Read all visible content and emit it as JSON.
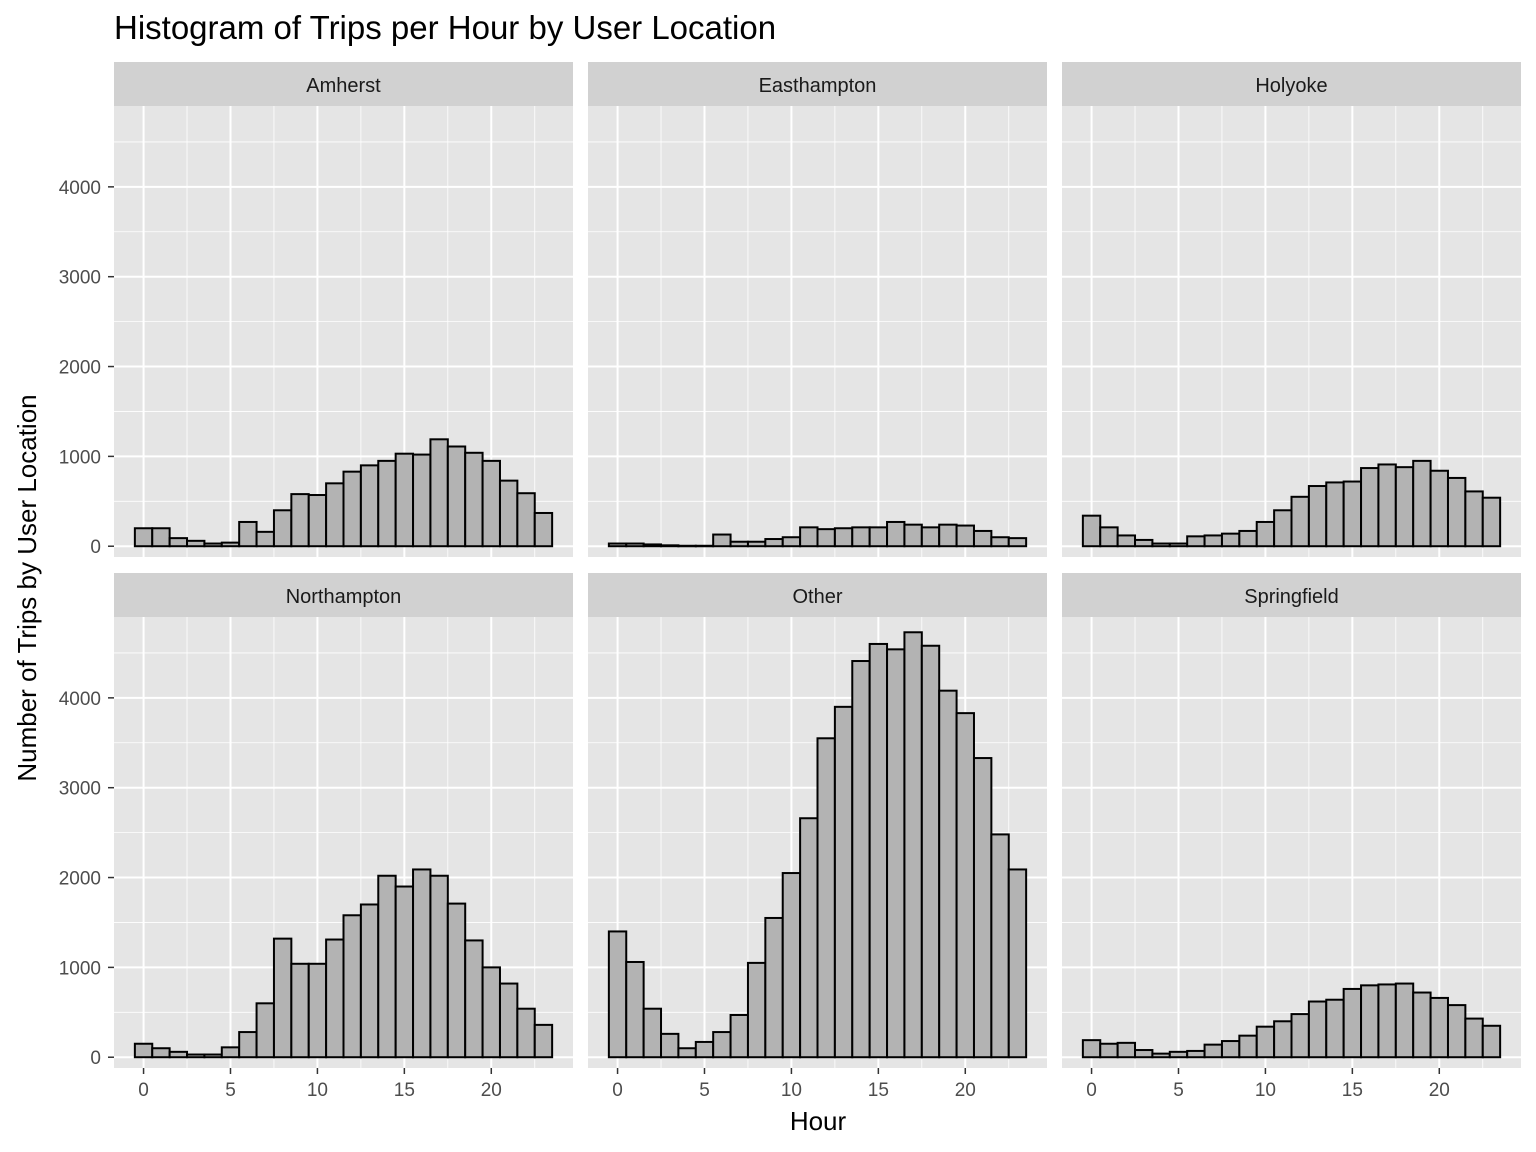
{
  "title": "Histogram of Trips per Hour by User Location",
  "xlabel": "Hour",
  "ylabel": "Number of Trips by User Location",
  "colors": {
    "panel_bg": "#e5e5e5",
    "strip_bg": "#d1d1d1",
    "grid_major": "#ffffff",
    "bar_fill": "#b3b3b3",
    "bar_stroke": "#000000",
    "tick_text": "#4d4d4d"
  },
  "chart_data": {
    "type": "bar",
    "subtype": "faceted-histogram",
    "facet_layout": {
      "rows": 2,
      "cols": 3
    },
    "x": [
      0,
      1,
      2,
      3,
      4,
      5,
      6,
      7,
      8,
      9,
      10,
      11,
      12,
      13,
      14,
      15,
      16,
      17,
      18,
      19,
      20,
      21,
      22,
      23
    ],
    "xlim": [
      -1.7,
      24.7
    ],
    "ylim": [
      -120,
      4900
    ],
    "x_ticks": [
      0,
      5,
      10,
      15,
      20
    ],
    "y_ticks": [
      0,
      1000,
      2000,
      3000,
      4000
    ],
    "grid": true,
    "shared_axes": true,
    "series": [
      {
        "name": "Amherst",
        "values": [
          200,
          200,
          90,
          60,
          30,
          40,
          270,
          160,
          400,
          580,
          570,
          700,
          830,
          900,
          950,
          1030,
          1020,
          1190,
          1110,
          1040,
          950,
          730,
          590,
          370
        ]
      },
      {
        "name": "Easthampton",
        "values": [
          30,
          30,
          20,
          10,
          5,
          5,
          130,
          50,
          50,
          80,
          100,
          210,
          190,
          200,
          210,
          210,
          270,
          240,
          210,
          240,
          230,
          170,
          100,
          90
        ]
      },
      {
        "name": "Holyoke",
        "values": [
          340,
          210,
          120,
          70,
          30,
          30,
          110,
          120,
          140,
          170,
          270,
          400,
          550,
          670,
          710,
          720,
          870,
          910,
          880,
          950,
          840,
          760,
          610,
          540
        ]
      },
      {
        "name": "Northampton",
        "values": [
          150,
          100,
          60,
          30,
          30,
          110,
          280,
          600,
          1320,
          1040,
          1040,
          1310,
          1580,
          1700,
          2020,
          1900,
          2090,
          2020,
          1710,
          1300,
          1000,
          820,
          540,
          360
        ]
      },
      {
        "name": "Other",
        "values": [
          1400,
          1060,
          540,
          260,
          100,
          170,
          280,
          470,
          1050,
          1550,
          2050,
          2660,
          3550,
          3900,
          4410,
          4600,
          4540,
          4730,
          4580,
          4080,
          3830,
          3330,
          2480,
          2090
        ]
      },
      {
        "name": "Springfield",
        "values": [
          190,
          150,
          160,
          80,
          40,
          60,
          70,
          140,
          180,
          240,
          340,
          400,
          480,
          620,
          640,
          760,
          800,
          810,
          820,
          720,
          660,
          580,
          430,
          350
        ]
      }
    ]
  }
}
